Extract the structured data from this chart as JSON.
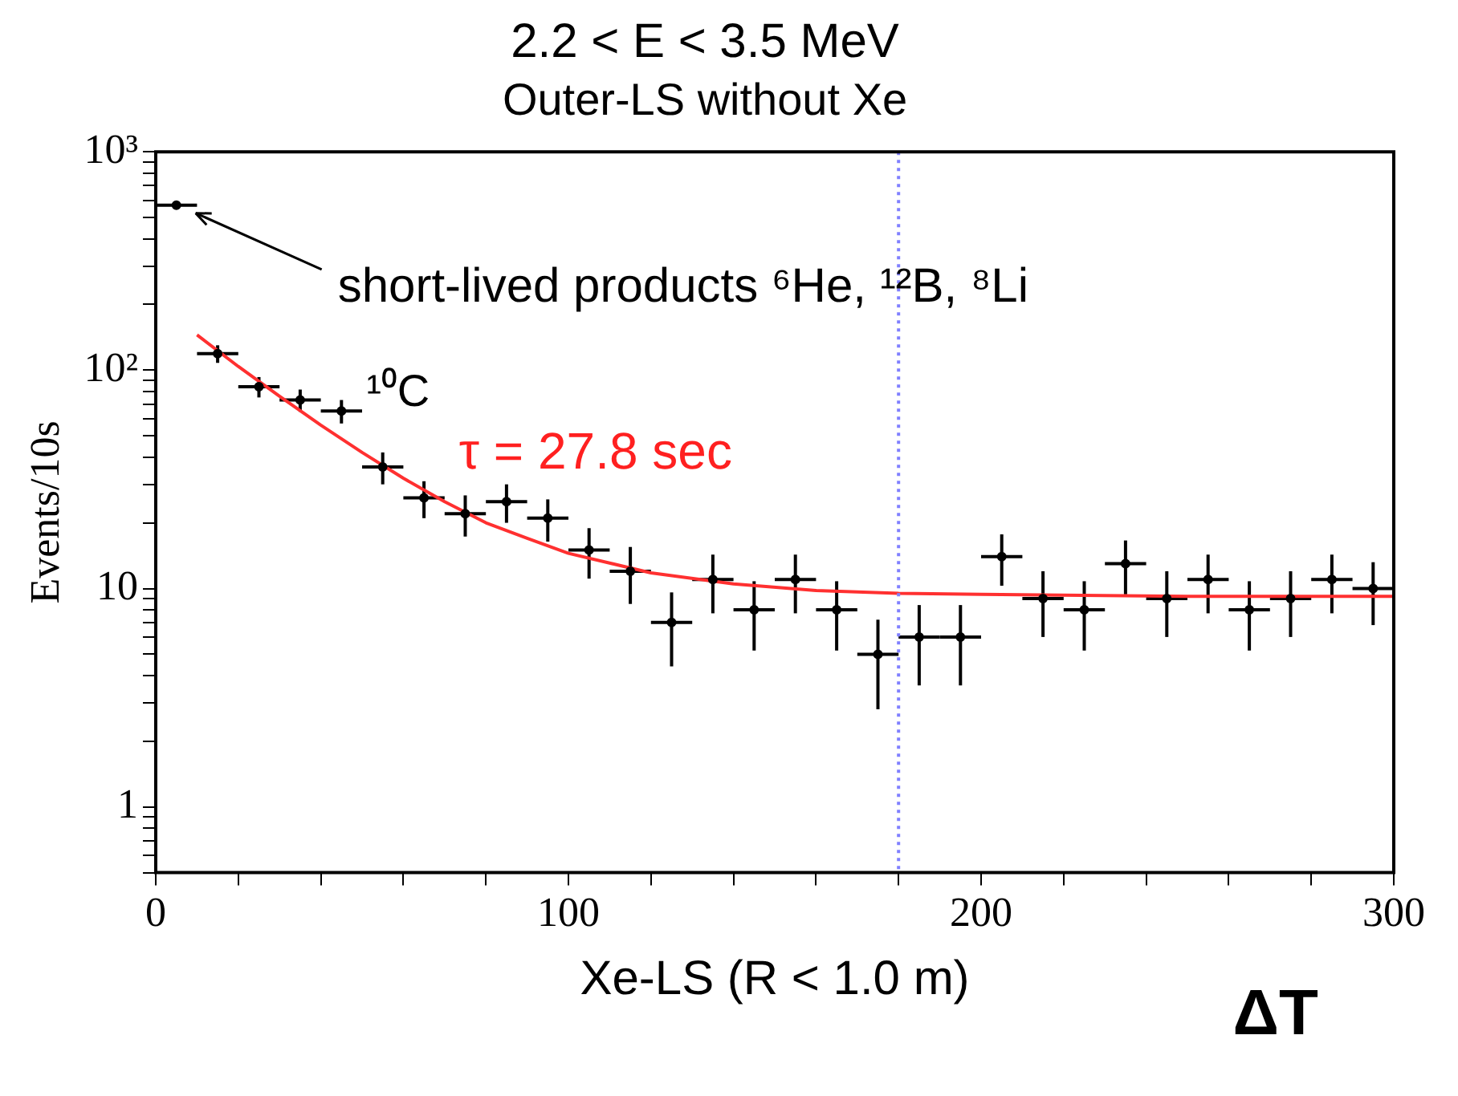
{
  "chart_data": {
    "type": "scatter",
    "title": "2.2 < E < 3.5 MeV",
    "subtitle": "Outer-LS without Xe",
    "xlabel": "Xe-LS (R < 1.0 m)",
    "ylabel": "Events/10s",
    "xlim": [
      0,
      300
    ],
    "xticks": [
      0,
      {
        "value": 20,
        "label": null
      },
      {
        "value": 40,
        "label": null
      },
      {
        "value": 60,
        "label": null
      },
      {
        "value": 80,
        "label": null
      },
      100,
      {
        "value": 120,
        "label": null
      },
      {
        "value": 140,
        "label": null
      },
      {
        "value": 160,
        "label": null
      },
      {
        "value": 180,
        "label": null
      },
      200,
      {
        "value": 220,
        "label": null
      },
      {
        "value": 240,
        "label": null
      },
      {
        "value": 260,
        "label": null
      },
      {
        "value": 280,
        "label": null
      },
      300
    ],
    "ylim": [
      0.5,
      1000
    ],
    "log": "y",
    "yticks": [
      {
        "value": 0.5,
        "label": null
      },
      {
        "value": 0.6,
        "label": null
      },
      {
        "value": 0.7,
        "label": null
      },
      {
        "value": 0.8,
        "label": null
      },
      {
        "value": 0.9,
        "label": null
      },
      1,
      {
        "value": 2,
        "label": null
      },
      {
        "value": 3,
        "label": null
      },
      {
        "value": 4,
        "label": null
      },
      {
        "value": 5,
        "label": null
      },
      {
        "value": 6,
        "label": null
      },
      {
        "value": 7,
        "label": null
      },
      {
        "value": 8,
        "label": null
      },
      {
        "value": 9,
        "label": null
      },
      10,
      {
        "value": 20,
        "label": null
      },
      {
        "value": 30,
        "label": null
      },
      {
        "value": 40,
        "label": null
      },
      {
        "value": 50,
        "label": null
      },
      {
        "value": 60,
        "label": null
      },
      {
        "value": 70,
        "label": null
      },
      {
        "value": 80,
        "label": null
      },
      {
        "value": 90,
        "label": null
      },
      {
        "value": 100,
        "label": "10²"
      },
      {
        "value": 200,
        "label": null
      },
      {
        "value": 300,
        "label": null
      },
      {
        "value": 400,
        "label": null
      },
      {
        "value": 500,
        "label": null
      },
      {
        "value": 600,
        "label": null
      },
      {
        "value": 700,
        "label": null
      },
      {
        "value": 800,
        "label": null
      },
      {
        "value": 900,
        "label": null
      },
      {
        "value": 1000,
        "label": "10³"
      }
    ],
    "grid": false,
    "legend": false,
    "marker": "circle",
    "series": [
      {
        "type": "scatter",
        "color": "#000000",
        "x": [
          5,
          15,
          25,
          35,
          45,
          55,
          65,
          75,
          85,
          95,
          105,
          115,
          125,
          135,
          145,
          155,
          165,
          175,
          185,
          195,
          205,
          215,
          225,
          235,
          245,
          255,
          265,
          275,
          285,
          295
        ],
        "values": [
          570,
          119,
          84,
          73,
          65,
          36,
          26,
          22,
          25,
          21,
          15,
          12,
          7,
          11,
          8,
          11,
          8,
          5,
          6,
          6,
          14,
          9,
          8,
          13,
          9,
          11,
          8,
          9,
          11,
          10
        ],
        "errors": [
          24,
          11,
          9,
          8.5,
          8,
          6,
          5,
          4.7,
          5,
          4.6,
          3.9,
          3.5,
          2.6,
          3.3,
          2.8,
          3.3,
          2.8,
          2.2,
          2.4,
          2.4,
          3.7,
          3,
          2.8,
          3.6,
          3,
          3.3,
          2.8,
          3,
          3.3,
          3.2
        ],
        "xerrors": [
          5,
          5,
          5,
          5,
          5,
          5,
          5,
          5,
          5,
          5,
          5,
          5,
          5,
          5,
          5,
          5,
          5,
          5,
          5,
          5,
          5,
          5,
          5,
          5,
          5,
          5,
          5,
          5,
          5,
          5
        ]
      },
      {
        "type": "line",
        "color": "#ff3030",
        "marker": "none",
        "line_style": "solid",
        "x": [
          10,
          20,
          30,
          40,
          50,
          60,
          70,
          80,
          90,
          100,
          120,
          140,
          160,
          180,
          200,
          250,
          300
        ],
        "values": [
          145,
          104,
          76,
          56,
          42,
          32,
          25,
          20,
          17,
          14.5,
          11.8,
          10.5,
          9.8,
          9.5,
          9.4,
          9.2,
          9.2
        ]
      }
    ],
    "ref_lines": [
      {
        "axis": "x",
        "value": 180,
        "color": "#8080ff",
        "line_style": "dotted"
      }
    ],
    "annotations": [
      "short-lived products ⁶He, ¹²B, ⁸Li",
      "¹⁰C",
      "τ = 27.8 sec",
      "ΔT"
    ]
  }
}
